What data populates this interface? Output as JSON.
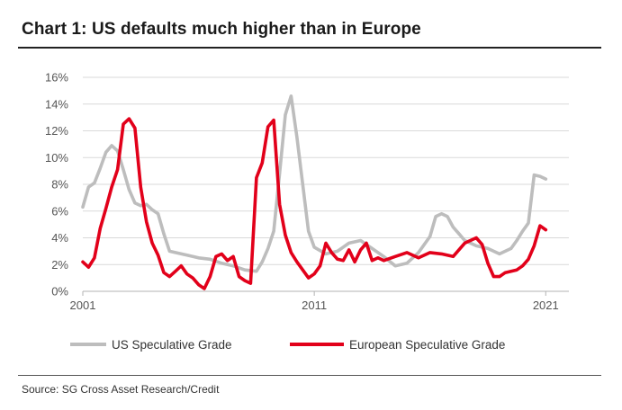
{
  "title": "Chart 1: US defaults much higher than in Europe",
  "source": "Source: SG Cross Asset Research/Credit",
  "chart_data": {
    "type": "line",
    "xlabel": "",
    "ylabel": "",
    "x_ticks": [
      "2001",
      "2011",
      "2021"
    ],
    "y_ticks": [
      "0%",
      "2%",
      "4%",
      "6%",
      "8%",
      "10%",
      "12%",
      "14%",
      "16%"
    ],
    "xlim": [
      2001,
      2022
    ],
    "ylim": [
      0,
      16
    ],
    "grid": true,
    "legend": "bottom",
    "series": [
      {
        "name": "US Speculative Grade",
        "color": "#bdbdbd",
        "x": [
          2001.0,
          2001.25,
          2001.5,
          2001.75,
          2002.0,
          2002.25,
          2002.5,
          2002.75,
          2003.0,
          2003.25,
          2003.5,
          2003.75,
          2004.0,
          2004.25,
          2004.5,
          2004.75,
          2005.0,
          2005.5,
          2006.0,
          2006.5,
          2007.0,
          2007.5,
          2008.0,
          2008.5,
          2008.75,
          2009.0,
          2009.25,
          2009.5,
          2009.75,
          2010.0,
          2010.25,
          2010.5,
          2010.75,
          2011.0,
          2011.5,
          2012.0,
          2012.5,
          2013.0,
          2013.5,
          2014.0,
          2014.5,
          2015.0,
          2015.5,
          2016.0,
          2016.25,
          2016.5,
          2016.75,
          2017.0,
          2017.25,
          2017.5,
          2017.75,
          2018.0,
          2018.5,
          2019.0,
          2019.5,
          2019.75,
          2020.0,
          2020.25,
          2020.5,
          2020.75,
          2021.0
        ],
        "values": [
          6.3,
          7.8,
          8.1,
          9.2,
          10.4,
          10.9,
          10.5,
          9.1,
          7.6,
          6.6,
          6.4,
          6.5,
          6.1,
          5.8,
          4.3,
          3.0,
          2.9,
          2.7,
          2.5,
          2.4,
          2.1,
          1.9,
          1.6,
          1.5,
          2.2,
          3.2,
          4.5,
          8.8,
          13.2,
          14.6,
          11.5,
          8.0,
          4.5,
          3.3,
          2.8,
          3.0,
          3.6,
          3.8,
          3.2,
          2.6,
          1.9,
          2.1,
          2.9,
          4.1,
          5.6,
          5.8,
          5.6,
          4.8,
          4.3,
          3.8,
          3.6,
          3.4,
          3.2,
          2.8,
          3.2,
          3.8,
          4.5,
          5.1,
          8.7,
          8.6,
          8.4
        ]
      },
      {
        "name": "European Speculative Grade",
        "color": "#e2001a",
        "x": [
          2001.0,
          2001.25,
          2001.5,
          2001.75,
          2002.0,
          2002.25,
          2002.5,
          2002.75,
          2003.0,
          2003.25,
          2003.5,
          2003.75,
          2004.0,
          2004.25,
          2004.5,
          2004.75,
          2005.0,
          2005.25,
          2005.5,
          2005.75,
          2006.0,
          2006.25,
          2006.5,
          2006.75,
          2007.0,
          2007.25,
          2007.5,
          2007.75,
          2008.0,
          2008.25,
          2008.5,
          2008.75,
          2009.0,
          2009.25,
          2009.5,
          2009.75,
          2010.0,
          2010.25,
          2010.5,
          2010.75,
          2011.0,
          2011.25,
          2011.5,
          2011.75,
          2012.0,
          2012.25,
          2012.5,
          2012.75,
          2013.0,
          2013.25,
          2013.5,
          2013.75,
          2014.0,
          2014.5,
          2015.0,
          2015.5,
          2016.0,
          2016.5,
          2017.0,
          2017.5,
          2018.0,
          2018.25,
          2018.5,
          2018.75,
          2019.0,
          2019.25,
          2019.5,
          2019.75,
          2020.0,
          2020.25,
          2020.5,
          2020.75,
          2021.0
        ],
        "values": [
          2.2,
          1.8,
          2.5,
          4.7,
          6.2,
          7.8,
          9.1,
          12.5,
          12.9,
          12.2,
          7.8,
          5.2,
          3.6,
          2.7,
          1.4,
          1.1,
          1.5,
          1.9,
          1.3,
          1.0,
          0.5,
          0.2,
          1.1,
          2.6,
          2.8,
          2.3,
          2.6,
          1.1,
          0.8,
          0.6,
          8.5,
          9.6,
          12.3,
          12.8,
          6.5,
          4.2,
          2.9,
          2.2,
          1.6,
          1.0,
          1.3,
          1.9,
          3.6,
          2.9,
          2.4,
          2.3,
          3.1,
          2.2,
          3.1,
          3.6,
          2.3,
          2.5,
          2.3,
          2.6,
          2.9,
          2.5,
          2.9,
          2.8,
          2.6,
          3.6,
          4.0,
          3.5,
          2.1,
          1.1,
          1.1,
          1.4,
          1.5,
          1.6,
          1.9,
          2.4,
          3.4,
          4.9,
          4.6
        ]
      }
    ]
  }
}
